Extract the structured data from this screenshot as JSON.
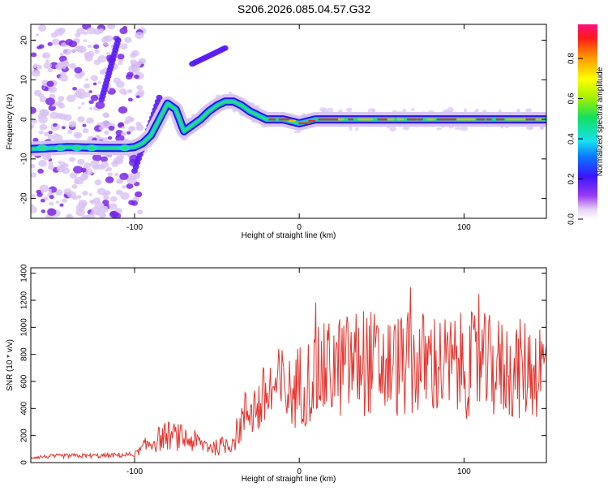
{
  "title": "S206.2026.085.04.57.G32",
  "colors": {
    "snr_line": "#e8312b",
    "stable_band": "#e8312b",
    "frame": "#000000"
  },
  "chart_data": [
    {
      "type": "heatmap",
      "title": "S206.2026.085.04.57.G32",
      "xlabel": "Height of straight line (km)",
      "ylabel": "Frequency (Hz)",
      "xlim": [
        -163,
        150
      ],
      "ylim": [
        -25,
        24
      ],
      "xticks": [
        -100,
        0,
        100
      ],
      "xtick_labels": [
        "-100",
        "0",
        "100"
      ],
      "yticks": [
        -20,
        -10,
        0,
        10,
        20
      ],
      "ytick_labels": [
        "-20",
        "-10",
        "0",
        "10",
        "20"
      ],
      "colorbar": {
        "label": "Normalized spectral amplitude",
        "range": [
          0,
          0.97
        ],
        "ticks": [
          0.0,
          0.2,
          0.4,
          0.6,
          0.8
        ],
        "tick_labels": [
          "0.0",
          "0.2",
          "0.4",
          "0.6",
          "0.8"
        ]
      },
      "ridge": {
        "x": [
          -163,
          -140,
          -120,
          -105,
          -100,
          -95,
          -90,
          -85,
          -80,
          -75,
          -70,
          -65,
          -60,
          -55,
          -50,
          -45,
          -40,
          -35,
          -30,
          -25,
          -20,
          -10,
          0,
          10,
          20,
          40,
          60,
          80,
          100,
          120,
          140,
          150
        ],
        "y": [
          -7.5,
          -7,
          -7.2,
          -7.2,
          -7,
          -6,
          -4,
          0,
          4,
          2.5,
          -3,
          -1.5,
          0,
          2,
          3.5,
          4.5,
          4.5,
          3.5,
          2,
          1,
          0,
          0,
          -1,
          0,
          0,
          0,
          0,
          0,
          0,
          0,
          0,
          0
        ]
      },
      "branches": [
        {
          "x": [
            -100,
            -85
          ],
          "y": [
            -13,
            5.5
          ]
        },
        {
          "x": [
            -65,
            -45
          ],
          "y": [
            14,
            18
          ]
        },
        {
          "x": [
            -120,
            -110
          ],
          "y": [
            5,
            20
          ]
        }
      ]
    },
    {
      "type": "line",
      "xlabel": "Height of straight line (km)",
      "ylabel": "SNR (10 * v/v)",
      "xlim": [
        -163,
        150
      ],
      "ylim": [
        0,
        1440
      ],
      "xticks": [
        -100,
        0,
        100
      ],
      "xtick_labels": [
        "-100",
        "0",
        "100"
      ],
      "yticks": [
        0,
        200,
        400,
        600,
        800,
        1000,
        1200,
        1400
      ],
      "ytick_labels": [
        "0",
        "200",
        "400",
        "600",
        "800",
        "1000",
        "1200",
        "1400"
      ],
      "series": [
        {
          "name": "SNR",
          "x": [
            -163,
            -140,
            -120,
            -100,
            -90,
            -80,
            -70,
            -60,
            -50,
            -40,
            -35,
            -30,
            -25,
            -20,
            -15,
            -10,
            -5,
            0,
            5,
            10,
            20,
            30,
            40,
            50,
            60,
            70,
            80,
            90,
            100,
            110,
            120,
            130,
            140,
            150
          ],
          "y": [
            40,
            50,
            50,
            60,
            150,
            200,
            180,
            140,
            110,
            160,
            300,
            420,
            400,
            500,
            540,
            560,
            500,
            580,
            600,
            640,
            700,
            720,
            760,
            700,
            720,
            720,
            740,
            700,
            720,
            720,
            700,
            680,
            700,
            700
          ]
        }
      ]
    }
  ]
}
